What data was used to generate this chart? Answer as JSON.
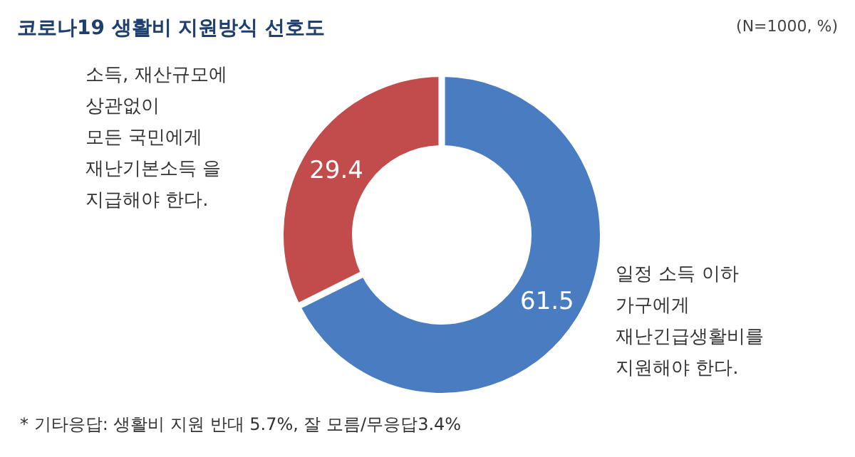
{
  "chart_data": {
    "type": "donut",
    "title": "코로나19 생활비 지원방식 선호도",
    "subtitle": "(N=1000, %)",
    "categories": [
      "일정 소득 이하\n가구에게\n재난긴급생활비를\n지원해야  한다.",
      "소득, 재산규모에\n상관없이\n모든 국민에게\n재난기본소득 을\n지급해야  한다."
    ],
    "values": [
      61.5,
      29.4
    ],
    "colors": [
      "#4a7cc2",
      "#c24b4b"
    ],
    "data_labels": true,
    "annotations": [
      "* 기타응답: 생활비 지원 반대 5.7%, 잘 모름/무응답3.4%"
    ]
  }
}
